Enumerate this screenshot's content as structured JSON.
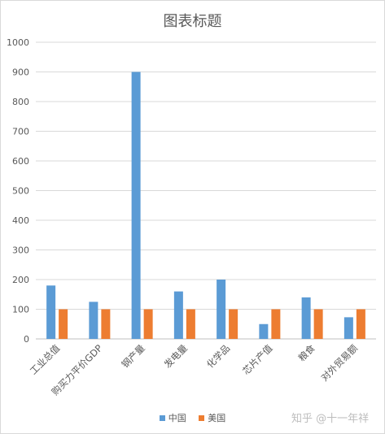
{
  "chart_data": {
    "type": "bar",
    "title": "图表标题",
    "categories": [
      "工业总值",
      "购买力平价GDP",
      "钢产量",
      "发电量",
      "化学品",
      "芯片产值",
      "粮食",
      "对外贸易额"
    ],
    "series": [
      {
        "name": "中国",
        "values": [
          180,
          125,
          900,
          160,
          200,
          50,
          140,
          73
        ],
        "color": "#5b9bd5"
      },
      {
        "name": "美国",
        "values": [
          100,
          100,
          100,
          100,
          100,
          100,
          100,
          100
        ],
        "color": "#ed7d31"
      }
    ],
    "ylim": [
      0,
      1000
    ],
    "yticks": [
      0,
      100,
      200,
      300,
      400,
      500,
      600,
      700,
      800,
      900,
      1000
    ],
    "grid": true,
    "legend_position": "bottom"
  },
  "watermark": "知乎 @十一年祥"
}
